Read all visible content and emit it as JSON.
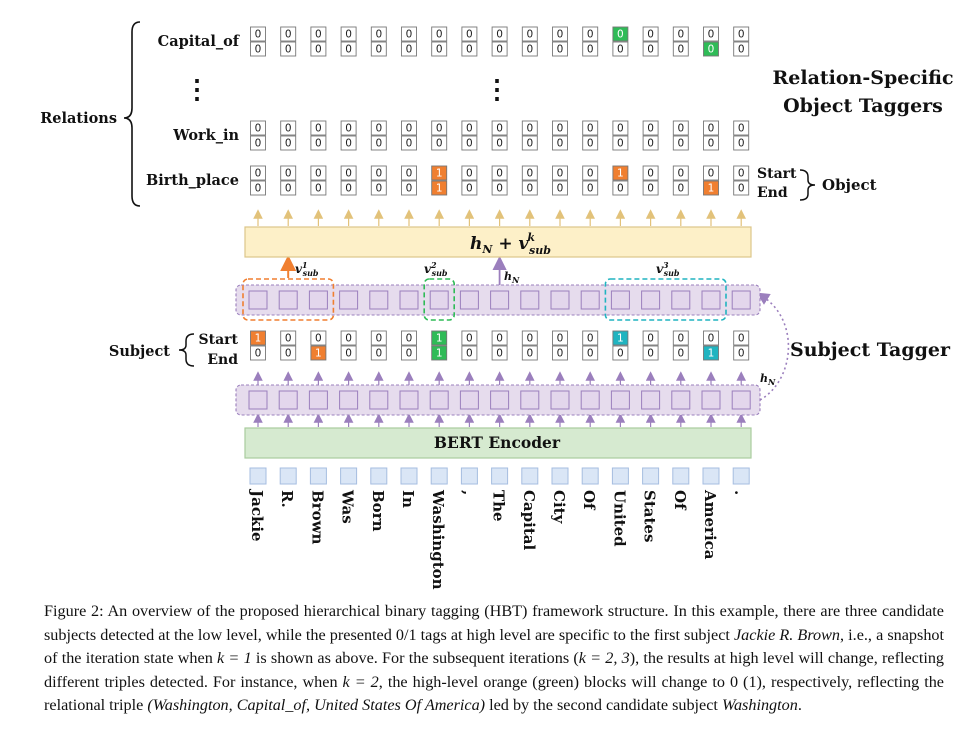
{
  "tokens": [
    "Jackie",
    "R.",
    "Brown",
    "Was",
    "Born",
    "In",
    "Washington",
    ",",
    "The",
    "Capital",
    "City",
    "Of",
    "United",
    "States",
    "Of",
    "America",
    "."
  ],
  "relation_rows": [
    {
      "name": "Capital_of",
      "start": [
        0,
        0,
        0,
        0,
        0,
        0,
        0,
        0,
        0,
        0,
        0,
        0,
        0,
        0,
        0,
        0,
        0
      ],
      "end": [
        0,
        0,
        0,
        0,
        0,
        0,
        0,
        0,
        0,
        0,
        0,
        0,
        0,
        0,
        0,
        0,
        0
      ],
      "start_fill": [
        0,
        0,
        0,
        0,
        0,
        0,
        0,
        0,
        0,
        0,
        0,
        0,
        2,
        0,
        0,
        0,
        0
      ],
      "end_fill": [
        0,
        0,
        0,
        0,
        0,
        0,
        0,
        0,
        0,
        0,
        0,
        0,
        0,
        0,
        0,
        2,
        0
      ]
    },
    {
      "name": "Work_in",
      "start": [
        0,
        0,
        0,
        0,
        0,
        0,
        0,
        0,
        0,
        0,
        0,
        0,
        0,
        0,
        0,
        0,
        0
      ],
      "end": [
        0,
        0,
        0,
        0,
        0,
        0,
        0,
        0,
        0,
        0,
        0,
        0,
        0,
        0,
        0,
        0,
        0
      ],
      "start_fill": [
        0,
        0,
        0,
        0,
        0,
        0,
        0,
        0,
        0,
        0,
        0,
        0,
        0,
        0,
        0,
        0,
        0
      ],
      "end_fill": [
        0,
        0,
        0,
        0,
        0,
        0,
        0,
        0,
        0,
        0,
        0,
        0,
        0,
        0,
        0,
        0,
        0
      ]
    },
    {
      "name": "Birth_place",
      "start": [
        0,
        0,
        0,
        0,
        0,
        0,
        1,
        0,
        0,
        0,
        0,
        0,
        1,
        0,
        0,
        0,
        0
      ],
      "end": [
        0,
        0,
        0,
        0,
        0,
        0,
        1,
        0,
        0,
        0,
        0,
        0,
        0,
        0,
        0,
        1,
        0
      ],
      "start_fill": [
        0,
        0,
        0,
        0,
        0,
        0,
        1,
        0,
        0,
        0,
        0,
        0,
        1,
        0,
        0,
        0,
        0
      ],
      "end_fill": [
        0,
        0,
        0,
        0,
        0,
        0,
        1,
        0,
        0,
        0,
        0,
        0,
        0,
        0,
        0,
        1,
        0
      ]
    }
  ],
  "subject_row": {
    "start": [
      1,
      0,
      0,
      0,
      0,
      0,
      1,
      0,
      0,
      0,
      0,
      0,
      1,
      0,
      0,
      0,
      0
    ],
    "end": [
      0,
      0,
      1,
      0,
      0,
      0,
      1,
      0,
      0,
      0,
      0,
      0,
      0,
      0,
      0,
      1,
      0
    ],
    "start_fill": [
      1,
      0,
      0,
      0,
      0,
      0,
      2,
      0,
      0,
      0,
      0,
      0,
      3,
      0,
      0,
      0,
      0
    ],
    "end_fill": [
      0,
      0,
      1,
      0,
      0,
      0,
      2,
      0,
      0,
      0,
      0,
      0,
      0,
      0,
      0,
      3,
      0
    ]
  },
  "colors": {
    "orange": "#f07f30",
    "green": "#2fbb57",
    "cyan": "#20b4c0",
    "purple": "#9b7fbd",
    "purple_fill": "#e6dced",
    "yellow_fill": "#fdf0c8",
    "yellow_stroke": "#dcc68a",
    "green_fill": "#d6ead0",
    "green_stroke": "#a9cc9e",
    "token_fill": "#dae6f6",
    "token_stroke": "#a6bde0",
    "arrow_yellow": "#e2c27a"
  },
  "labels": {
    "relations": "Relations",
    "vdots": "⋮",
    "start": "Start",
    "end": "End",
    "object": "Object",
    "subject": "Subject",
    "rsot_line1": "Relation-Specific",
    "rsot_line2": "Object Taggers",
    "subject_tagger": "Subject Tagger",
    "bert": "BERT Encoder",
    "h_n": "hN",
    "hn_plus_vsub": "hN + vsubk",
    "v1": "v1sub",
    "v2": "v2sub",
    "v3": "v3sub"
  },
  "caption": {
    "p1": "Figure 2: An overview of the proposed hierarchical binary tagging (HBT) framework structure. In this example, there are three candidate subjects detected at the low level, while the presented 0/1 tags at high level are specific to the first subject ",
    "i1": "Jackie R. Brown",
    "p2": ", i.e., a snapshot of the iteration state when ",
    "m1": "k = 1",
    "p3": " is shown as above. For the subsequent iterations (",
    "m2": "k = 2, 3",
    "p4": "), the results at high level will change, reflecting different triples detected. For instance, when ",
    "m3": "k = 2",
    "p5": ", the high-level orange (green) blocks will change to 0 (1), respectively, reflecting the relational triple ",
    "i2": "(Washington, Capital_of, United States Of America)",
    "p6": " led by the second candidate subject ",
    "i3": "Washington",
    "p7": "."
  }
}
